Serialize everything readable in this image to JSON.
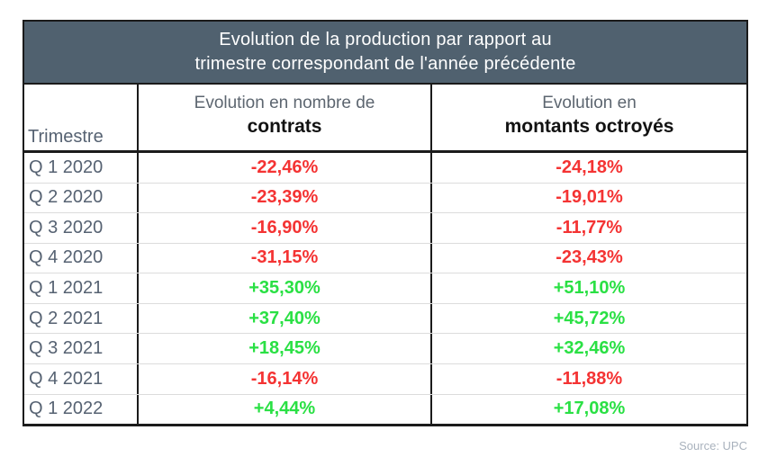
{
  "table": {
    "title_line1": "Evolution de la production par rapport au",
    "title_line2": "trimestre correspondant de l'année précédente",
    "columns": {
      "quarter": "Trimestre",
      "contracts_line1": "Evolution en nombre de",
      "contracts_line2": "contrats",
      "amounts_line1": "Evolution en",
      "amounts_line2": "montants octroyés"
    },
    "rows": [
      {
        "quarter": "Q 1 2020",
        "contracts": "-22,46%",
        "amounts": "-24,18%",
        "sign": "neg"
      },
      {
        "quarter": "Q 2 2020",
        "contracts": "-23,39%",
        "amounts": "-19,01%",
        "sign": "neg"
      },
      {
        "quarter": "Q 3 2020",
        "contracts": "-16,90%",
        "amounts": "-11,77%",
        "sign": "neg"
      },
      {
        "quarter": "Q 4 2020",
        "contracts": "-31,15%",
        "amounts": "-23,43%",
        "sign": "neg"
      },
      {
        "quarter": "Q 1 2021",
        "contracts": "+35,30%",
        "amounts": "+51,10%",
        "sign": "pos"
      },
      {
        "quarter": "Q 2 2021",
        "contracts": "+37,40%",
        "amounts": "+45,72%",
        "sign": "pos"
      },
      {
        "quarter": "Q 3 2021",
        "contracts": "+18,45%",
        "amounts": "+32,46%",
        "sign": "pos"
      },
      {
        "quarter": "Q 4 2021",
        "contracts": "-16,14%",
        "amounts": "-11,88%",
        "sign": "neg"
      },
      {
        "quarter": "Q 1 2022",
        "contracts": "+4,44%",
        "amounts": "+17,08%",
        "sign": "pos"
      }
    ]
  },
  "source": "Source: UPC",
  "colors": {
    "header_bg": "#50616f",
    "header_text": "#ffffff",
    "slate": "#566272",
    "subhead": "#5d6670",
    "bold_text": "#121212",
    "negative": "#f43333",
    "positive": "#2ae044",
    "border": "#1b1b1b",
    "row_divider": "#dcdcdc",
    "source_text": "#a9b2bd"
  },
  "chart_data": {
    "type": "table",
    "title": "Evolution de la production par rapport au trimestre correspondant de l'année précédente",
    "columns": [
      "Trimestre",
      "Evolution en nombre de contrats",
      "Evolution en montants octroyés"
    ],
    "categories": [
      "Q 1 2020",
      "Q 2 2020",
      "Q 3 2020",
      "Q 4 2020",
      "Q 1 2021",
      "Q 2 2021",
      "Q 3 2021",
      "Q 4 2021",
      "Q 1 2022"
    ],
    "series": [
      {
        "name": "Evolution en nombre de contrats (%)",
        "values": [
          -22.46,
          -23.39,
          -16.9,
          -31.15,
          35.3,
          37.4,
          18.45,
          -16.14,
          4.44
        ]
      },
      {
        "name": "Evolution en montants octroyés (%)",
        "values": [
          -24.18,
          -19.01,
          -11.77,
          -23.43,
          51.1,
          45.72,
          32.46,
          -11.88,
          17.08
        ]
      }
    ],
    "value_format": "percent, comma decimal separator, explicit +/- sign, red negative, green positive",
    "source": "Source: UPC"
  }
}
